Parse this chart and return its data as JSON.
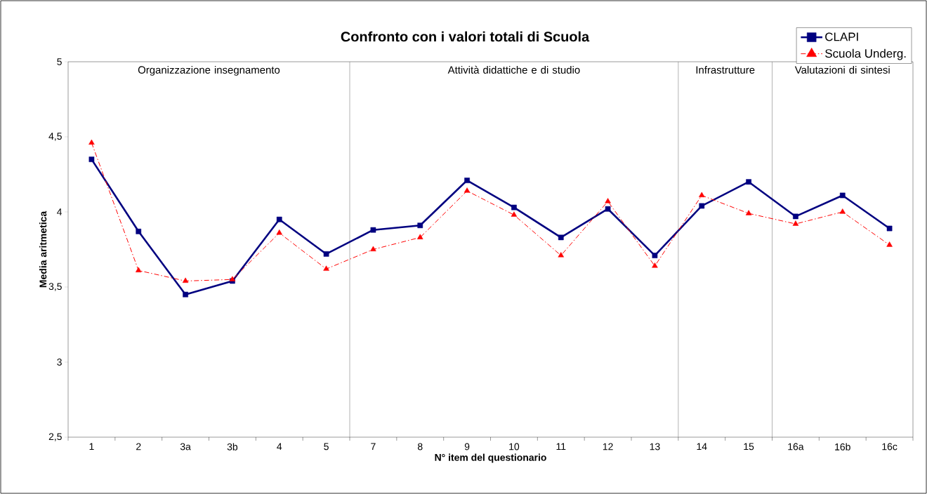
{
  "chart_data": {
    "type": "line",
    "title": "Confronto con i valori totali di Scuola",
    "xlabel": "N° item del questionario",
    "ylabel": "Media aritmetica",
    "categories": [
      "1",
      "2",
      "3a",
      "3b",
      "4",
      "5",
      "7",
      "8",
      "9",
      "10",
      "11",
      "12",
      "13",
      "14",
      "15",
      "16a",
      "16b",
      "16c"
    ],
    "series": [
      {
        "name": "CLAPI",
        "color": "#000080",
        "marker": "square",
        "line_style": "solid",
        "values": [
          4.35,
          3.87,
          3.45,
          3.54,
          3.95,
          3.72,
          3.88,
          3.91,
          4.21,
          4.03,
          3.83,
          4.02,
          3.71,
          4.04,
          4.2,
          3.97,
          4.11,
          3.89
        ]
      },
      {
        "name": "Scuola Underg.",
        "color": "#ff0000",
        "marker": "triangle",
        "line_style": "dashed",
        "values": [
          4.46,
          3.61,
          3.54,
          3.55,
          3.86,
          3.62,
          3.75,
          3.83,
          4.14,
          3.98,
          3.71,
          4.07,
          3.64,
          4.11,
          3.99,
          3.92,
          4.0,
          3.78
        ]
      }
    ],
    "ylim": [
      2.5,
      5
    ],
    "yticks": [
      {
        "value": 2.5,
        "label": "2,5"
      },
      3,
      {
        "value": 3.5,
        "label": "3,5"
      },
      4,
      {
        "value": 4.5,
        "label": "4,5"
      },
      5
    ],
    "annotations": [
      "Organizzazione insegnamento",
      "Attività didattiche e di studio",
      "Infrastrutture",
      "Valutazioni di sintesi"
    ],
    "grid": false,
    "legend": "top right"
  }
}
